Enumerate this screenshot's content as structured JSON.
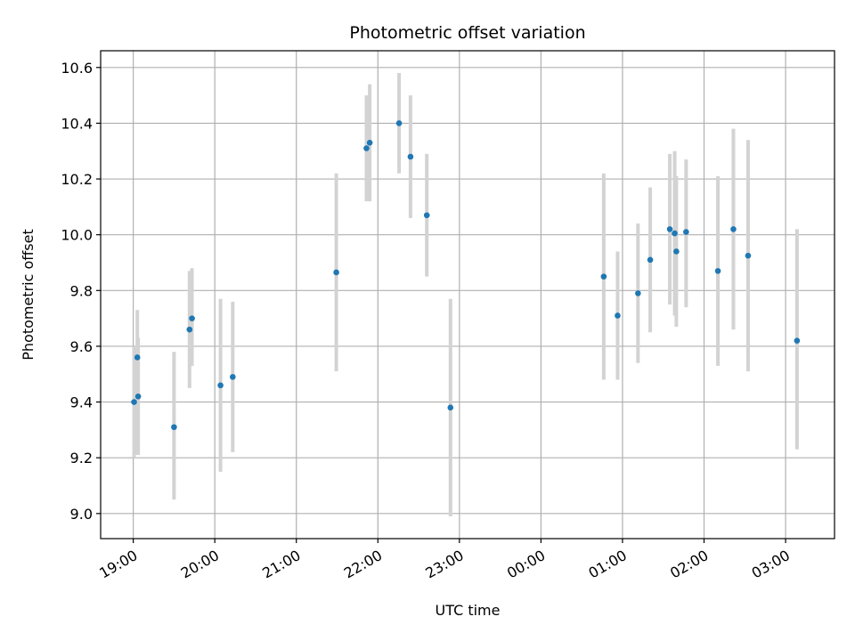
{
  "chart_data": {
    "type": "scatter",
    "title": "Photometric offset variation",
    "xlabel": "UTC time",
    "ylabel": "Photometric offset",
    "x_ticks": [
      "19:00",
      "20:00",
      "21:00",
      "22:00",
      "23:00",
      "00:00",
      "01:00",
      "02:00",
      "03:00"
    ],
    "x_tick_hours": [
      19,
      20,
      21,
      22,
      23,
      24,
      25,
      26,
      27
    ],
    "xlim_hours": [
      18.6,
      27.6
    ],
    "y_ticks": [
      "9.0",
      "9.2",
      "9.4",
      "9.6",
      "9.8",
      "10.0",
      "10.2",
      "10.4",
      "10.6"
    ],
    "y_tick_values": [
      9.0,
      9.2,
      9.4,
      9.6,
      9.8,
      10.0,
      10.2,
      10.4,
      10.6
    ],
    "ylim": [
      8.91,
      10.66
    ],
    "grid": true,
    "marker_color": "#1f77b4",
    "errorbar_color": "#d3d3d3",
    "points": [
      {
        "t": "19:01",
        "h": 19.01,
        "y": 9.4,
        "lo": 9.2,
        "hi": 9.6
      },
      {
        "t": "19:03",
        "h": 19.05,
        "y": 9.56,
        "lo": 9.21,
        "hi": 9.73
      },
      {
        "t": "19:04",
        "h": 19.06,
        "y": 9.42,
        "lo": 9.21,
        "hi": 9.63
      },
      {
        "t": "19:30",
        "h": 19.5,
        "y": 9.31,
        "lo": 9.05,
        "hi": 9.58
      },
      {
        "t": "19:41",
        "h": 19.69,
        "y": 9.66,
        "lo": 9.45,
        "hi": 9.87
      },
      {
        "t": "19:43",
        "h": 19.72,
        "y": 9.7,
        "lo": 9.53,
        "hi": 9.88
      },
      {
        "t": "20:04",
        "h": 20.07,
        "y": 9.46,
        "lo": 9.15,
        "hi": 9.77
      },
      {
        "t": "20:13",
        "h": 20.22,
        "y": 9.49,
        "lo": 9.22,
        "hi": 9.76
      },
      {
        "t": "21:30",
        "h": 21.49,
        "y": 9.865,
        "lo": 9.51,
        "hi": 10.22
      },
      {
        "t": "21:51",
        "h": 21.86,
        "y": 10.31,
        "lo": 10.12,
        "hi": 10.5
      },
      {
        "t": "21:54",
        "h": 21.9,
        "y": 10.33,
        "lo": 10.12,
        "hi": 10.54
      },
      {
        "t": "22:16",
        "h": 22.26,
        "y": 10.4,
        "lo": 10.22,
        "hi": 10.58
      },
      {
        "t": "22:24",
        "h": 22.4,
        "y": 10.28,
        "lo": 10.06,
        "hi": 10.5
      },
      {
        "t": "22:36",
        "h": 22.6,
        "y": 10.07,
        "lo": 9.85,
        "hi": 10.29
      },
      {
        "t": "22:54",
        "h": 22.89,
        "y": 9.38,
        "lo": 8.99,
        "hi": 9.77
      },
      {
        "t": "00:46",
        "h": 24.77,
        "y": 9.85,
        "lo": 9.48,
        "hi": 10.22
      },
      {
        "t": "00:56",
        "h": 24.94,
        "y": 9.71,
        "lo": 9.48,
        "hi": 9.94
      },
      {
        "t": "01:12",
        "h": 25.19,
        "y": 9.79,
        "lo": 9.54,
        "hi": 10.04
      },
      {
        "t": "01:20",
        "h": 25.34,
        "y": 9.91,
        "lo": 9.65,
        "hi": 10.17
      },
      {
        "t": "01:35",
        "h": 25.58,
        "y": 10.02,
        "lo": 9.75,
        "hi": 10.29
      },
      {
        "t": "01:38",
        "h": 25.64,
        "y": 10.005,
        "lo": 9.71,
        "hi": 10.3
      },
      {
        "t": "01:40",
        "h": 25.66,
        "y": 9.94,
        "lo": 9.67,
        "hi": 10.21
      },
      {
        "t": "01:47",
        "h": 25.78,
        "y": 10.01,
        "lo": 9.74,
        "hi": 10.27
      },
      {
        "t": "02:10",
        "h": 26.17,
        "y": 9.87,
        "lo": 9.53,
        "hi": 10.21
      },
      {
        "t": "02:21",
        "h": 26.36,
        "y": 10.02,
        "lo": 9.66,
        "hi": 10.38
      },
      {
        "t": "02:32",
        "h": 26.54,
        "y": 9.925,
        "lo": 9.51,
        "hi": 10.34
      },
      {
        "t": "03:08",
        "h": 27.14,
        "y": 9.62,
        "lo": 9.23,
        "hi": 10.02
      }
    ]
  }
}
